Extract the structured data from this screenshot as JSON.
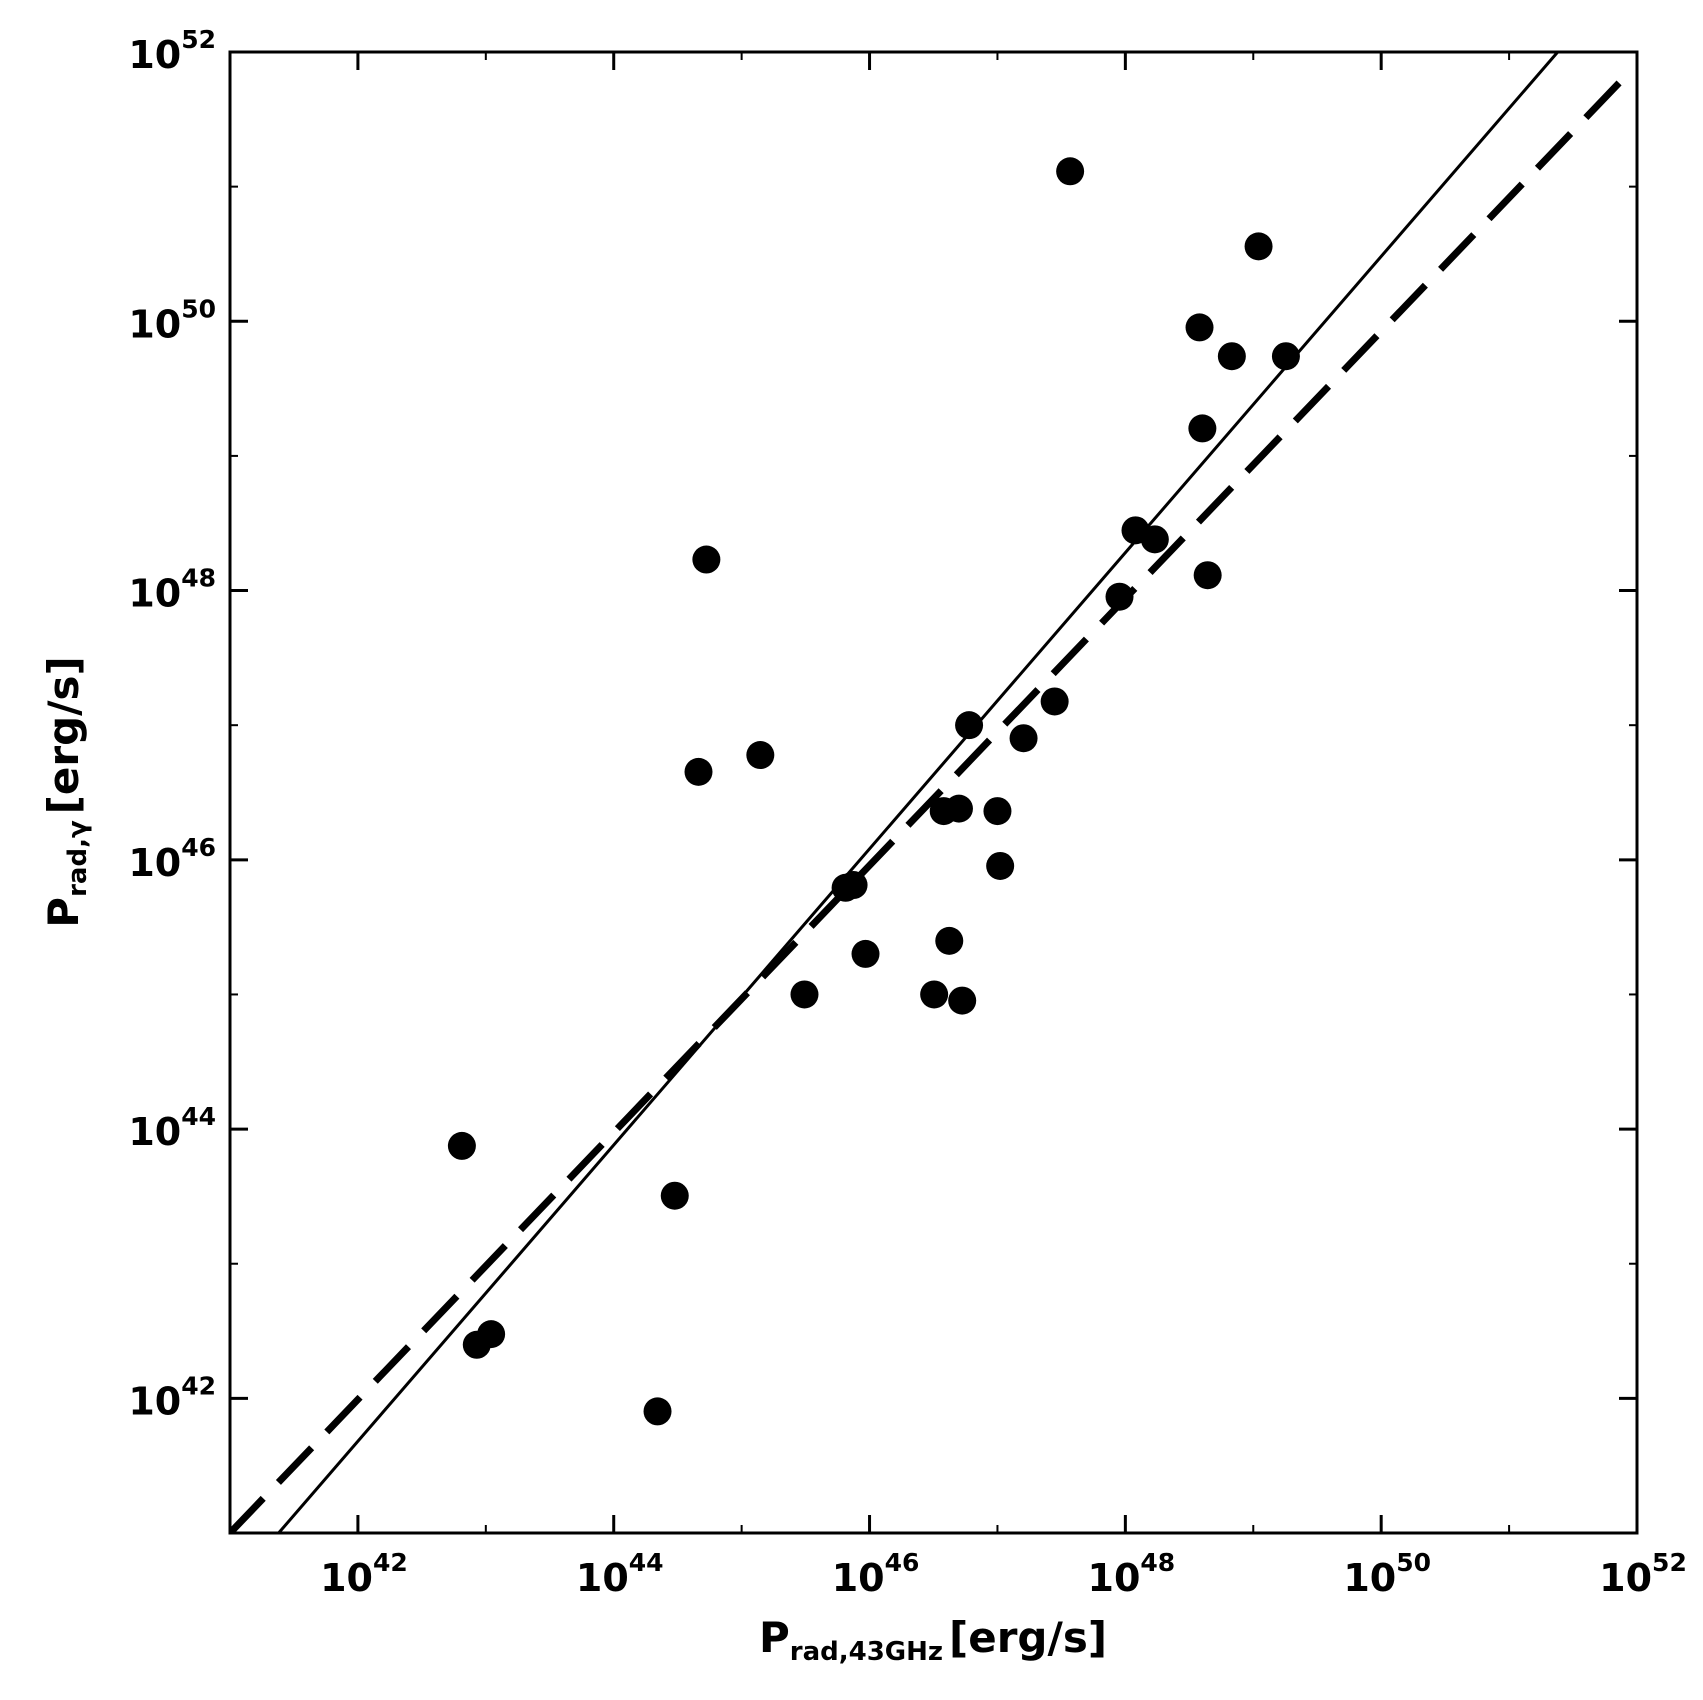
{
  "chart_data": {
    "type": "scatter",
    "xscale": "log",
    "yscale": "log",
    "xlim": [
      1e+41,
      1e+52
    ],
    "ylim": [
      1e+41,
      1e+52
    ],
    "grid": false,
    "xlabel": {
      "main": "P",
      "sub": "rad,43GHz",
      "unit": "[erg/s]"
    },
    "ylabel": {
      "main": "P",
      "sub": "rad,γ",
      "unit": "[erg/s]"
    },
    "xticks": [
      {
        "base": "10",
        "exp": "42",
        "value": 1e+42
      },
      {
        "base": "10",
        "exp": "44",
        "value": 1e+44
      },
      {
        "base": "10",
        "exp": "46",
        "value": 1e+46
      },
      {
        "base": "10",
        "exp": "48",
        "value": 1e+48
      },
      {
        "base": "10",
        "exp": "50",
        "value": 1e+50
      },
      {
        "base": "10",
        "exp": "52",
        "value": 1e+52
      }
    ],
    "yticks": [
      {
        "base": "10",
        "exp": "42",
        "value": 1e+42
      },
      {
        "base": "10",
        "exp": "44",
        "value": 1e+44
      },
      {
        "base": "10",
        "exp": "46",
        "value": 1e+46
      },
      {
        "base": "10",
        "exp": "48",
        "value": 1e+48
      },
      {
        "base": "10",
        "exp": "50",
        "value": 1e+50
      },
      {
        "base": "10",
        "exp": "52",
        "value": 1e+52
      }
    ],
    "points": [
      {
        "x": 6.5e+42,
        "y": 7.5e+43
      },
      {
        "x": 8.5e+42,
        "y": 2.5e+42
      },
      {
        "x": 1.1e+43,
        "y": 3e+42
      },
      {
        "x": 2.2e+44,
        "y": 8e+41
      },
      {
        "x": 3e+44,
        "y": 3.2e+43
      },
      {
        "x": 4.6e+44,
        "y": 4.5e+46
      },
      {
        "x": 5.3e+44,
        "y": 1.7e+48
      },
      {
        "x": 1.4e+45,
        "y": 6e+46
      },
      {
        "x": 3.1e+45,
        "y": 1e+45
      },
      {
        "x": 6.5e+45,
        "y": 6.2e+45
      },
      {
        "x": 7.5e+45,
        "y": 6.5e+45
      },
      {
        "x": 9.3e+45,
        "y": 2e+45
      },
      {
        "x": 3.2e+46,
        "y": 1e+45
      },
      {
        "x": 3.8e+46,
        "y": 2.3e+46
      },
      {
        "x": 4.2e+46,
        "y": 2.5e+45
      },
      {
        "x": 5e+46,
        "y": 2.4e+46
      },
      {
        "x": 5.3e+46,
        "y": 9e+44
      },
      {
        "x": 6e+46,
        "y": 1e+47
      },
      {
        "x": 1e+47,
        "y": 2.3e+46
      },
      {
        "x": 1.05e+47,
        "y": 9e+45
      },
      {
        "x": 1.6e+47,
        "y": 8e+46
      },
      {
        "x": 2.8e+47,
        "y": 1.5e+47
      },
      {
        "x": 3.7e+47,
        "y": 1.3e+51
      },
      {
        "x": 9e+47,
        "y": 9e+47
      },
      {
        "x": 1.2e+48,
        "y": 2.8e+48
      },
      {
        "x": 1.7e+48,
        "y": 2.4e+48
      },
      {
        "x": 3.8e+48,
        "y": 9e+49
      },
      {
        "x": 4e+48,
        "y": 1.6e+49
      },
      {
        "x": 4.4e+48,
        "y": 1.3e+48
      },
      {
        "x": 6.8e+48,
        "y": 5.5e+49
      },
      {
        "x": 1.1e+49,
        "y": 3.6e+50
      },
      {
        "x": 1.8e+49,
        "y": 5.5e+49
      }
    ],
    "lines": [
      {
        "style": "solid",
        "x": [
          2.4e+41,
          2.4e+51
        ],
        "y": [
          1e+41,
          1e+52
        ]
      },
      {
        "style": "dashed",
        "x": [
          1e+41,
          8e+51
        ],
        "y": [
          1e+41,
          6.5e+51
        ]
      }
    ]
  }
}
